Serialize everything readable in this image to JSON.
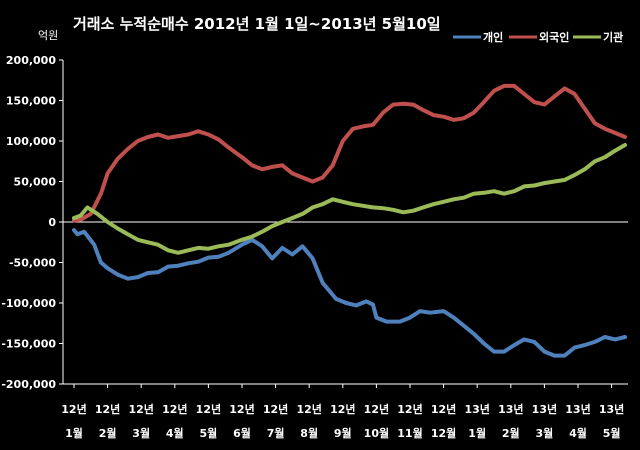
{
  "chart_data": {
    "type": "line",
    "title": "거래소 누적순매수 2012년 1월 1일~2013년 5월10일",
    "ylabel": "억원",
    "ylim": [
      -200000,
      200000
    ],
    "yticks": [
      "200,000",
      "150,000",
      "100,000",
      "50,000",
      "0",
      "-50,000",
      "-100,000",
      "-150,000",
      "-200,000"
    ],
    "ytick_values": [
      200000,
      150000,
      100000,
      50000,
      0,
      -50000,
      -100000,
      -150000,
      -200000
    ],
    "categories": [
      {
        "year": "12년",
        "month": "1월"
      },
      {
        "year": "12년",
        "month": "2월"
      },
      {
        "year": "12년",
        "month": "3월"
      },
      {
        "year": "12년",
        "month": "4월"
      },
      {
        "year": "12년",
        "month": "5월"
      },
      {
        "year": "12년",
        "month": "6월"
      },
      {
        "year": "12년",
        "month": "7월"
      },
      {
        "year": "12년",
        "month": "8월"
      },
      {
        "year": "12년",
        "month": "9월"
      },
      {
        "year": "12년",
        "month": "10월"
      },
      {
        "year": "12년",
        "month": "11월"
      },
      {
        "year": "12년",
        "month": "12월"
      },
      {
        "year": "13년",
        "month": "1월"
      },
      {
        "year": "13년",
        "month": "2월"
      },
      {
        "year": "13년",
        "month": "3월"
      },
      {
        "year": "13년",
        "month": "4월"
      },
      {
        "year": "13년",
        "month": "5월"
      }
    ],
    "grid": false,
    "legend_position": "top-right",
    "series": [
      {
        "name": "개인",
        "color": "#4f81bd",
        "x": [
          0,
          0.1,
          0.3,
          0.6,
          0.8,
          1.0,
          1.3,
          1.6,
          1.9,
          2.2,
          2.5,
          2.8,
          3.1,
          3.4,
          3.7,
          4.0,
          4.3,
          4.6,
          5.0,
          5.3,
          5.6,
          5.9,
          6.2,
          6.5,
          6.8,
          7.1,
          7.4,
          7.8,
          8.1,
          8.4,
          8.7,
          8.9,
          9.0,
          9.3,
          9.7,
          10.0,
          10.3,
          10.6,
          11.0,
          11.3,
          11.6,
          11.9,
          12.2,
          12.5,
          12.8,
          13.1,
          13.4,
          13.7,
          14.0,
          14.3,
          14.6,
          14.9,
          15.2,
          15.5,
          15.8,
          16.1,
          16.4
        ],
        "values": [
          -10000,
          -15000,
          -12000,
          -28000,
          -50000,
          -57000,
          -65000,
          -70000,
          -68000,
          -63000,
          -62000,
          -55000,
          -54000,
          -51000,
          -49000,
          -44000,
          -43000,
          -38000,
          -28000,
          -22000,
          -30000,
          -45000,
          -32000,
          -40000,
          -30000,
          -45000,
          -75000,
          -95000,
          -100000,
          -103000,
          -98000,
          -102000,
          -118000,
          -123000,
          -123000,
          -118000,
          -110000,
          -112000,
          -110000,
          -118000,
          -128000,
          -138000,
          -150000,
          -160000,
          -160000,
          -152000,
          -145000,
          -148000,
          -160000,
          -165000,
          -165000,
          -155000,
          -152000,
          -148000,
          -142000,
          -145000,
          -142000
        ]
      },
      {
        "name": "외국인",
        "color": "#c0504d",
        "x": [
          0,
          0.2,
          0.5,
          0.8,
          1.0,
          1.3,
          1.6,
          1.9,
          2.2,
          2.5,
          2.8,
          3.1,
          3.4,
          3.7,
          4.0,
          4.3,
          4.6,
          5.0,
          5.3,
          5.6,
          5.9,
          6.2,
          6.5,
          6.8,
          7.1,
          7.4,
          7.7,
          8.0,
          8.3,
          8.6,
          8.9,
          9.2,
          9.5,
          9.8,
          10.1,
          10.4,
          10.7,
          11.0,
          11.3,
          11.6,
          11.9,
          12.2,
          12.5,
          12.8,
          13.1,
          13.4,
          13.7,
          14.0,
          14.3,
          14.6,
          14.9,
          15.2,
          15.5,
          15.8,
          16.1,
          16.4
        ],
        "values": [
          2000,
          3000,
          10000,
          35000,
          60000,
          78000,
          90000,
          100000,
          105000,
          108000,
          104000,
          106000,
          108000,
          112000,
          108000,
          102000,
          92000,
          80000,
          70000,
          65000,
          68000,
          70000,
          60000,
          55000,
          50000,
          55000,
          70000,
          100000,
          115000,
          118000,
          120000,
          135000,
          145000,
          146000,
          145000,
          138000,
          132000,
          130000,
          126000,
          128000,
          135000,
          148000,
          162000,
          168000,
          168000,
          158000,
          148000,
          145000,
          155000,
          165000,
          158000,
          140000,
          122000,
          115000,
          110000,
          105000
        ]
      },
      {
        "name": "기관",
        "color": "#9bbb59",
        "x": [
          0,
          0.2,
          0.4,
          0.7,
          1.0,
          1.3,
          1.6,
          1.9,
          2.2,
          2.5,
          2.8,
          3.1,
          3.4,
          3.7,
          4.0,
          4.3,
          4.6,
          5.0,
          5.3,
          5.6,
          5.9,
          6.2,
          6.5,
          6.8,
          7.1,
          7.4,
          7.7,
          8.0,
          8.3,
          8.6,
          8.9,
          9.2,
          9.5,
          9.8,
          10.1,
          10.4,
          10.7,
          11.0,
          11.3,
          11.6,
          11.9,
          12.2,
          12.5,
          12.8,
          13.1,
          13.4,
          13.7,
          14.0,
          14.3,
          14.6,
          14.9,
          15.2,
          15.5,
          15.8,
          16.1,
          16.4
        ],
        "values": [
          5000,
          8000,
          18000,
          10000,
          0,
          -8000,
          -15000,
          -22000,
          -25000,
          -28000,
          -35000,
          -38000,
          -35000,
          -32000,
          -33000,
          -30000,
          -28000,
          -22000,
          -18000,
          -12000,
          -5000,
          0,
          5000,
          10000,
          18000,
          22000,
          28000,
          25000,
          22000,
          20000,
          18000,
          17000,
          15000,
          12000,
          14000,
          18000,
          22000,
          25000,
          28000,
          30000,
          35000,
          36000,
          38000,
          35000,
          38000,
          44000,
          45000,
          48000,
          50000,
          52000,
          58000,
          65000,
          75000,
          80000,
          88000,
          95000
        ]
      }
    ]
  }
}
